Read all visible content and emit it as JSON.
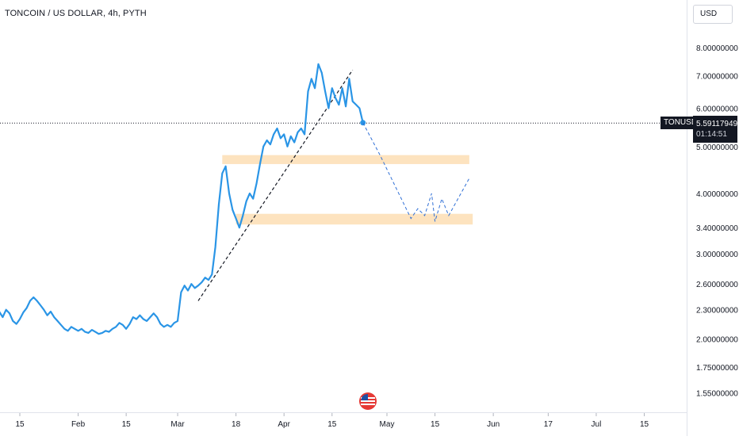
{
  "header": {
    "title": "TONCOIN / US DOLLAR, 4h, PYTH",
    "currency": "USD"
  },
  "price_tag": {
    "symbol": "TONUSD",
    "price": "5.59117949",
    "countdown": "01:14:51"
  },
  "colors": {
    "price_line": "#2a95e6",
    "projection": "#2f6fd6",
    "zone_fill": "#fde3bf",
    "trendline": "#131722",
    "axis_text": "#131722",
    "logo_red": "#e53935",
    "logo_blue": "#1e4fa3"
  },
  "icons": {
    "logo": "us-flag-logo-icon"
  },
  "chart_data": {
    "type": "line",
    "title": "TONCOIN / US DOLLAR, 4h, PYTH",
    "y_scale": "log",
    "ylim": [
      1.5,
      8.7
    ],
    "y_ticks": [
      {
        "label": "8.00000000",
        "value": 8.0
      },
      {
        "label": "7.00000000",
        "value": 7.0
      },
      {
        "label": "6.00000000",
        "value": 6.0
      },
      {
        "label": "5.00000000",
        "value": 5.0
      },
      {
        "label": "4.00000000",
        "value": 4.0
      },
      {
        "label": "3.40000000",
        "value": 3.4
      },
      {
        "label": "3.00000000",
        "value": 3.0
      },
      {
        "label": "2.60000000",
        "value": 2.6
      },
      {
        "label": "2.30000000",
        "value": 2.3
      },
      {
        "label": "2.00000000",
        "value": 2.0
      },
      {
        "label": "1.75000000",
        "value": 1.75
      },
      {
        "label": "1.55000000",
        "value": 1.55
      }
    ],
    "x_ticks": [
      {
        "label": "15",
        "date": "2024-01-15"
      },
      {
        "label": "Feb",
        "date": "2024-02-01"
      },
      {
        "label": "15",
        "date": "2024-02-15"
      },
      {
        "label": "Mar",
        "date": "2024-03-01"
      },
      {
        "label": "18",
        "date": "2024-03-18"
      },
      {
        "label": "Apr",
        "date": "2024-04-01"
      },
      {
        "label": "15",
        "date": "2024-04-15"
      },
      {
        "label": "May",
        "date": "2024-05-01"
      },
      {
        "label": "15",
        "date": "2024-05-15"
      },
      {
        "label": "Jun",
        "date": "2024-06-01"
      },
      {
        "label": "17",
        "date": "2024-06-17"
      },
      {
        "label": "Jul",
        "date": "2024-07-01"
      },
      {
        "label": "15",
        "date": "2024-07-15"
      }
    ],
    "series": [
      {
        "name": "TONUSD",
        "points": [
          [
            "2024-01-08",
            2.25
          ],
          [
            "2024-01-09",
            2.28
          ],
          [
            "2024-01-10",
            2.22
          ],
          [
            "2024-01-11",
            2.3
          ],
          [
            "2024-01-12",
            2.26
          ],
          [
            "2024-01-13",
            2.18
          ],
          [
            "2024-01-14",
            2.15
          ],
          [
            "2024-01-15",
            2.2
          ],
          [
            "2024-01-16",
            2.27
          ],
          [
            "2024-01-17",
            2.32
          ],
          [
            "2024-01-18",
            2.4
          ],
          [
            "2024-01-19",
            2.44
          ],
          [
            "2024-01-20",
            2.4
          ],
          [
            "2024-01-21",
            2.35
          ],
          [
            "2024-01-22",
            2.3
          ],
          [
            "2024-01-23",
            2.24
          ],
          [
            "2024-01-24",
            2.28
          ],
          [
            "2024-01-25",
            2.22
          ],
          [
            "2024-01-26",
            2.18
          ],
          [
            "2024-01-27",
            2.14
          ],
          [
            "2024-01-28",
            2.1
          ],
          [
            "2024-01-29",
            2.08
          ],
          [
            "2024-01-30",
            2.12
          ],
          [
            "2024-01-31",
            2.1
          ],
          [
            "2024-02-01",
            2.08
          ],
          [
            "2024-02-02",
            2.1
          ],
          [
            "2024-02-03",
            2.07
          ],
          [
            "2024-02-04",
            2.06
          ],
          [
            "2024-02-05",
            2.09
          ],
          [
            "2024-02-06",
            2.07
          ],
          [
            "2024-02-07",
            2.05
          ],
          [
            "2024-02-08",
            2.06
          ],
          [
            "2024-02-09",
            2.08
          ],
          [
            "2024-02-10",
            2.07
          ],
          [
            "2024-02-11",
            2.1
          ],
          [
            "2024-02-12",
            2.12
          ],
          [
            "2024-02-13",
            2.16
          ],
          [
            "2024-02-14",
            2.14
          ],
          [
            "2024-02-15",
            2.1
          ],
          [
            "2024-02-16",
            2.15
          ],
          [
            "2024-02-17",
            2.22
          ],
          [
            "2024-02-18",
            2.2
          ],
          [
            "2024-02-19",
            2.24
          ],
          [
            "2024-02-20",
            2.2
          ],
          [
            "2024-02-21",
            2.18
          ],
          [
            "2024-02-22",
            2.22
          ],
          [
            "2024-02-23",
            2.26
          ],
          [
            "2024-02-24",
            2.22
          ],
          [
            "2024-02-25",
            2.15
          ],
          [
            "2024-02-26",
            2.12
          ],
          [
            "2024-02-27",
            2.14
          ],
          [
            "2024-02-28",
            2.12
          ],
          [
            "2024-02-29",
            2.16
          ],
          [
            "2024-03-01",
            2.18
          ],
          [
            "2024-03-02",
            2.5
          ],
          [
            "2024-03-03",
            2.58
          ],
          [
            "2024-03-04",
            2.52
          ],
          [
            "2024-03-05",
            2.6
          ],
          [
            "2024-03-06",
            2.55
          ],
          [
            "2024-03-07",
            2.58
          ],
          [
            "2024-03-08",
            2.62
          ],
          [
            "2024-03-09",
            2.68
          ],
          [
            "2024-03-10",
            2.65
          ],
          [
            "2024-03-11",
            2.72
          ],
          [
            "2024-03-12",
            3.1
          ],
          [
            "2024-03-13",
            3.8
          ],
          [
            "2024-03-14",
            4.4
          ],
          [
            "2024-03-15",
            4.55
          ],
          [
            "2024-03-16",
            4.0
          ],
          [
            "2024-03-17",
            3.7
          ],
          [
            "2024-03-18",
            3.55
          ],
          [
            "2024-03-19",
            3.4
          ],
          [
            "2024-03-20",
            3.6
          ],
          [
            "2024-03-21",
            3.85
          ],
          [
            "2024-03-22",
            4.0
          ],
          [
            "2024-03-23",
            3.9
          ],
          [
            "2024-03-24",
            4.2
          ],
          [
            "2024-03-25",
            4.6
          ],
          [
            "2024-03-26",
            5.0
          ],
          [
            "2024-03-27",
            5.15
          ],
          [
            "2024-03-28",
            5.05
          ],
          [
            "2024-03-29",
            5.3
          ],
          [
            "2024-03-30",
            5.45
          ],
          [
            "2024-03-31",
            5.2
          ],
          [
            "2024-04-01",
            5.3
          ],
          [
            "2024-04-02",
            5.0
          ],
          [
            "2024-04-03",
            5.25
          ],
          [
            "2024-04-04",
            5.1
          ],
          [
            "2024-04-05",
            5.35
          ],
          [
            "2024-04-06",
            5.45
          ],
          [
            "2024-04-07",
            5.3
          ],
          [
            "2024-04-08",
            6.5
          ],
          [
            "2024-04-09",
            6.9
          ],
          [
            "2024-04-10",
            6.6
          ],
          [
            "2024-04-11",
            7.4
          ],
          [
            "2024-04-12",
            7.1
          ],
          [
            "2024-04-13",
            6.5
          ],
          [
            "2024-04-14",
            6.0
          ],
          [
            "2024-04-15",
            6.6
          ],
          [
            "2024-04-16",
            6.3
          ],
          [
            "2024-04-17",
            6.1
          ],
          [
            "2024-04-18",
            6.6
          ],
          [
            "2024-04-19",
            6.05
          ],
          [
            "2024-04-20",
            6.9
          ],
          [
            "2024-04-21",
            6.2
          ],
          [
            "2024-04-22",
            6.1
          ],
          [
            "2024-04-23",
            6.0
          ],
          [
            "2024-04-24",
            5.6
          ]
        ]
      }
    ],
    "projection": [
      [
        "2024-04-24",
        5.6
      ],
      [
        "2024-04-29",
        4.8
      ],
      [
        "2024-05-08",
        3.55
      ],
      [
        "2024-05-10",
        3.72
      ],
      [
        "2024-05-12",
        3.6
      ],
      [
        "2024-05-14",
        4.0
      ],
      [
        "2024-05-15",
        3.5
      ],
      [
        "2024-05-17",
        3.9
      ],
      [
        "2024-05-19",
        3.6
      ],
      [
        "2024-05-25",
        4.3
      ]
    ],
    "trendline": {
      "from": [
        "2024-03-07",
        2.4
      ],
      "to": [
        "2024-04-21",
        7.2
      ]
    },
    "zones": [
      {
        "from": "2024-03-14",
        "to": "2024-05-25",
        "low": 4.6,
        "high": 4.8
      },
      {
        "from": "2024-03-18",
        "to": "2024-05-26",
        "low": 3.45,
        "high": 3.63
      }
    ],
    "last_price": 5.59117949,
    "grid": false
  }
}
